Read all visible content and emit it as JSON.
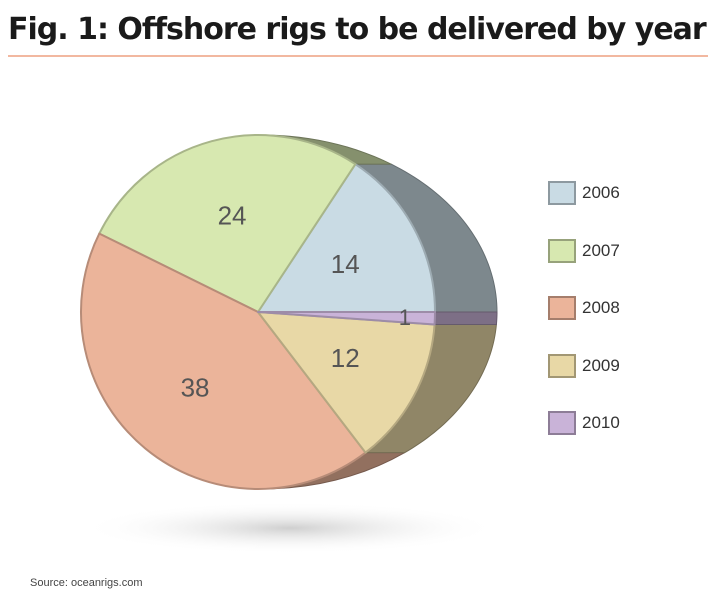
{
  "title": "Fig. 1: Offshore rigs to be delivered by year",
  "source": "Source: oceanrigs.com",
  "chart_data": {
    "type": "pie",
    "title": "Fig. 1: Offshore rigs to be delivered by year",
    "categories": [
      "2006",
      "2007",
      "2008",
      "2009",
      "2010"
    ],
    "values": [
      14,
      24,
      38,
      12,
      1
    ],
    "colors": {
      "2006": "#c9dbe4",
      "2007": "#d7e8b0",
      "2008": "#ebb49a",
      "2009": "#e8d8a6",
      "2010": "#c9b3d8"
    },
    "legend_position": "right",
    "style": "3d"
  }
}
